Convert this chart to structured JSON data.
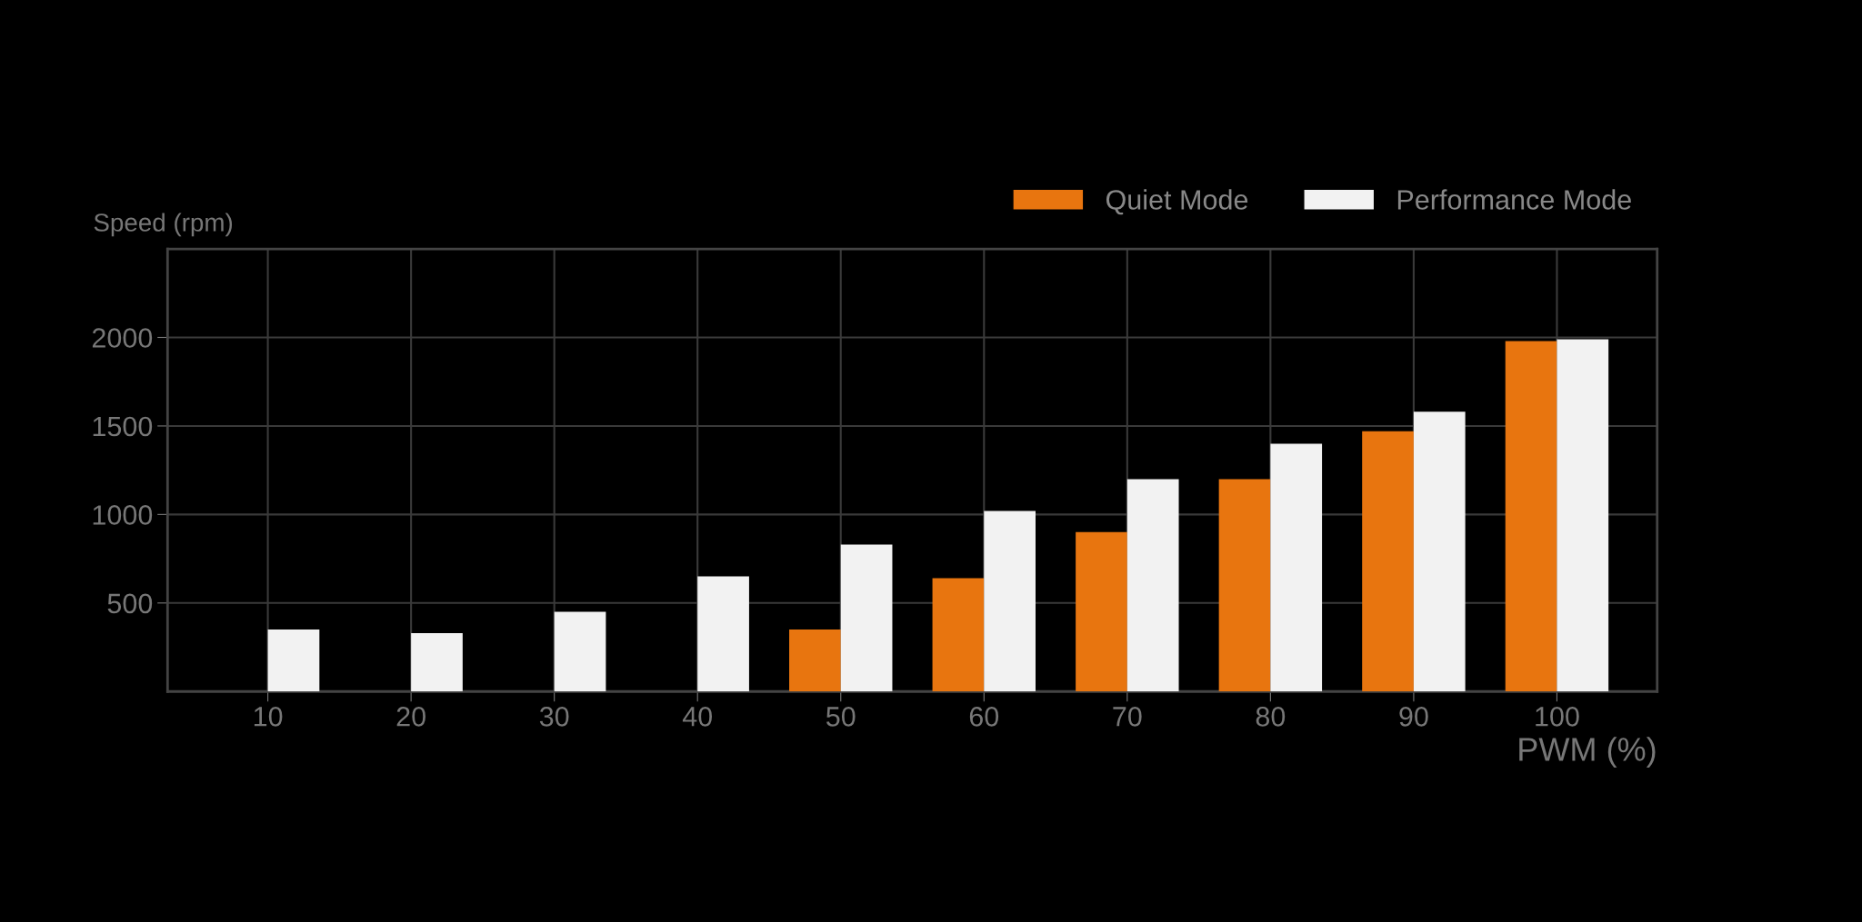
{
  "chart_data": {
    "type": "bar",
    "xlabel": "PWM (%)",
    "ylabel": "Speed (rpm)",
    "categories": [
      "10",
      "20",
      "30",
      "40",
      "50",
      "60",
      "70",
      "80",
      "90",
      "100"
    ],
    "series": [
      {
        "name": "Quiet Mode",
        "color": "#e8750f",
        "values": [
          null,
          null,
          null,
          null,
          350,
          640,
          900,
          1200,
          1470,
          1980
        ]
      },
      {
        "name": "Performance Mode",
        "color": "#f2f2f2",
        "values": [
          350,
          330,
          450,
          650,
          830,
          1020,
          1200,
          1400,
          1580,
          1990
        ]
      }
    ],
    "ylim": [
      0,
      2500
    ],
    "yticks": [
      500,
      1000,
      1500,
      2000
    ],
    "grid": true,
    "legend": "top right"
  }
}
